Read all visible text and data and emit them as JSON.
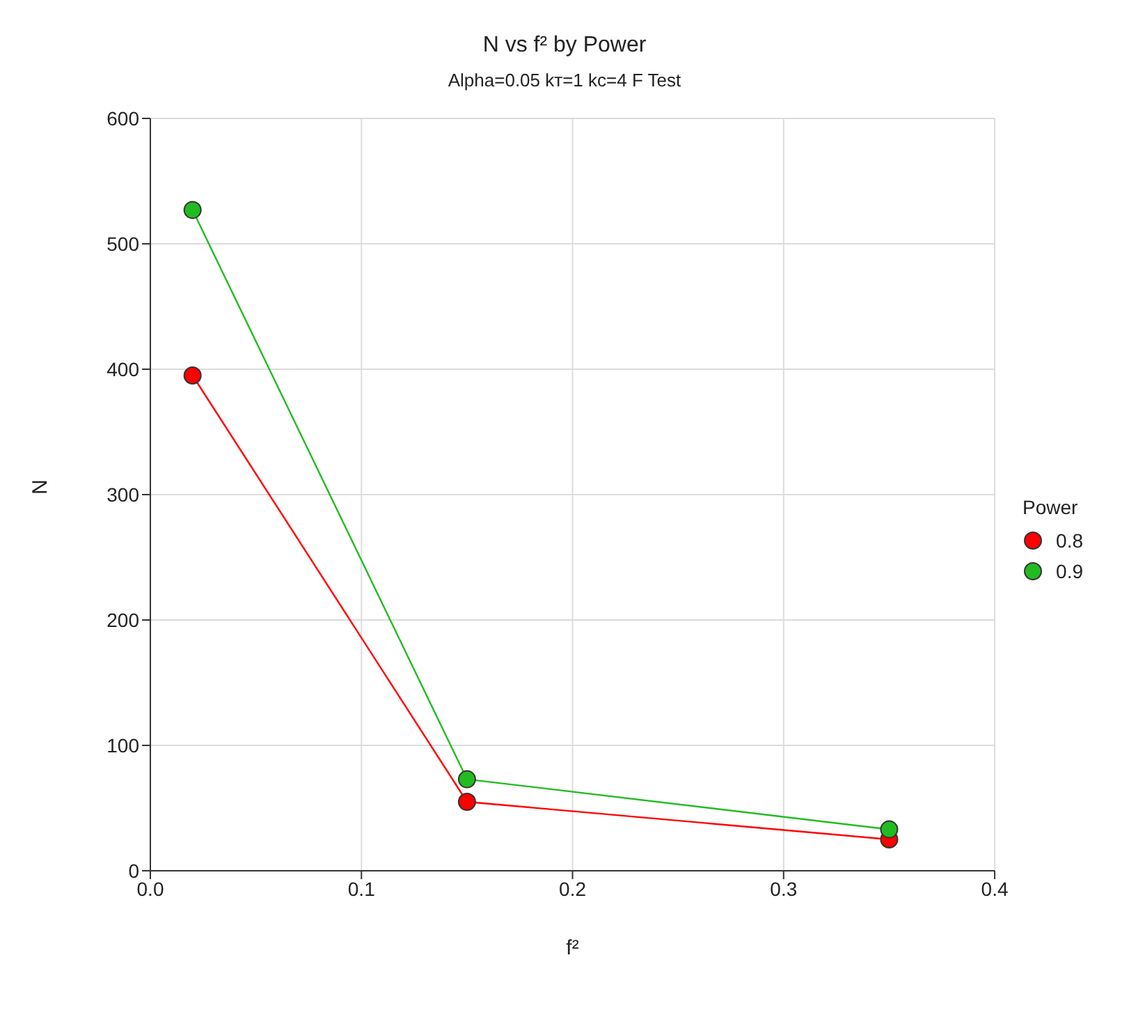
{
  "chart_data": {
    "type": "line",
    "title": "N vs f² by Power",
    "subtitle": "Alpha=0.05 kᴛ=1 kᴄ=4  F Test",
    "xlabel": "f²",
    "ylabel": "N",
    "legend_title": "Power",
    "x": [
      0.02,
      0.15,
      0.35
    ],
    "series": [
      {
        "name": "0.8",
        "color": "#ff0000",
        "values": [
          395,
          55,
          25
        ]
      },
      {
        "name": "0.9",
        "color": "#22bb22",
        "values": [
          527,
          73,
          33
        ]
      }
    ],
    "xlim": [
      0,
      0.4
    ],
    "xticks": [
      {
        "value": 0,
        "label": "0.0"
      },
      0.1,
      0.2,
      0.3,
      0.4
    ],
    "ylim": [
      0,
      600
    ],
    "yticks": [
      0,
      100,
      200,
      300,
      400,
      500,
      600
    ],
    "grid": true,
    "legend": "right",
    "marker": "circle",
    "line_style": "solid"
  }
}
